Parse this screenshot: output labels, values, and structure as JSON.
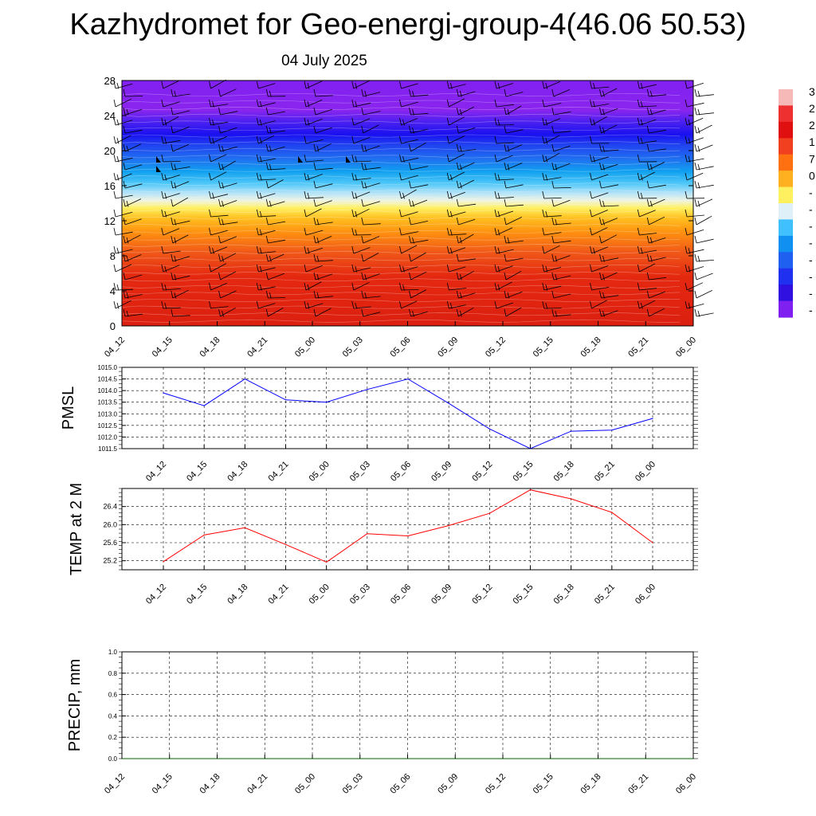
{
  "header": {
    "title": "Kazhydromet for Geo-energi-group-4(46.06 50.53)",
    "subtitle": "04 July 2025"
  },
  "time_labels": [
    "04_12",
    "04_15",
    "04_18",
    "04_21",
    "05_00",
    "05_03",
    "05_06",
    "05_09",
    "05_12",
    "05_15",
    "05_18",
    "05_21",
    "06_00"
  ],
  "chart_data": [
    {
      "type": "heatmap",
      "title": "",
      "ylabel": "",
      "x": [
        "04_12",
        "04_15",
        "04_18",
        "04_21",
        "05_00",
        "05_03",
        "05_06",
        "05_09",
        "05_12",
        "05_15",
        "05_18",
        "05_21",
        "06_00"
      ],
      "ylim": [
        0,
        28
      ],
      "yticks": [
        0,
        4,
        8,
        12,
        16,
        20,
        24,
        28
      ],
      "colorbar": {
        "labels": [
          "3",
          "2",
          "2",
          "1",
          "7",
          "0",
          "-",
          "-",
          "-",
          "-",
          "-",
          "-",
          "-",
          "-"
        ],
        "colors": [
          "#f7b8b8",
          "#ee3030",
          "#e01010",
          "#f04020",
          "#ff7010",
          "#ffb020",
          "#fff060",
          "#e0f0f8",
          "#40c0ff",
          "#1090f0",
          "#2060f0",
          "#2030f0",
          "#3010e0",
          "#8020f0"
        ]
      },
      "overlay": "wind barbs"
    },
    {
      "type": "line",
      "ylabel": "PMSL",
      "x": [
        "04_12",
        "04_15",
        "04_18",
        "04_21",
        "05_00",
        "05_03",
        "05_06",
        "05_09",
        "05_12",
        "05_15",
        "05_18",
        "05_21",
        "06_00"
      ],
      "series": [
        {
          "color": "#0000ff",
          "values": [
            1013.9,
            1013.35,
            1014.5,
            1013.6,
            1013.5,
            1014.05,
            1014.5,
            1013.45,
            1012.35,
            1011.5,
            1012.25,
            1012.3,
            1012.8
          ]
        }
      ],
      "ylim": [
        1011.5,
        1015.0
      ],
      "yticks": [
        "1011.5",
        "1012.0",
        "1012.5",
        "1013.0",
        "1013.5",
        "1014.0",
        "1014.5",
        "1015.0"
      ],
      "grid": true
    },
    {
      "type": "line",
      "ylabel": "TEMP at 2 M",
      "x": [
        "04_12",
        "04_15",
        "04_18",
        "04_21",
        "05_00",
        "05_03",
        "05_06",
        "05_09",
        "05_12",
        "05_15",
        "05_18",
        "05_21",
        "06_00"
      ],
      "series": [
        {
          "color": "#ff0000",
          "values": [
            25.18,
            25.77,
            25.93,
            25.56,
            25.17,
            25.8,
            25.75,
            25.98,
            26.25,
            26.77,
            26.57,
            26.27,
            25.6
          ]
        }
      ],
      "ylim": [
        25.0,
        26.8
      ],
      "yticks": [
        "25.2",
        "25.6",
        "26.0",
        "26.4"
      ],
      "grid": true
    },
    {
      "type": "line",
      "ylabel": "PRECIP, mm",
      "x": [
        "04_12",
        "04_15",
        "04_18",
        "04_21",
        "05_00",
        "05_03",
        "05_06",
        "05_09",
        "05_12",
        "05_15",
        "05_18",
        "05_21",
        "06_00"
      ],
      "series": [
        {
          "color": "#006400",
          "values": [
            0,
            0,
            0,
            0,
            0,
            0,
            0,
            0,
            0,
            0,
            0,
            0,
            0
          ]
        }
      ],
      "ylim": [
        0.0,
        1.0
      ],
      "yticks": [
        "0.0",
        "0.2",
        "0.4",
        "0.6",
        "0.8",
        "1.0"
      ],
      "grid": true
    }
  ]
}
